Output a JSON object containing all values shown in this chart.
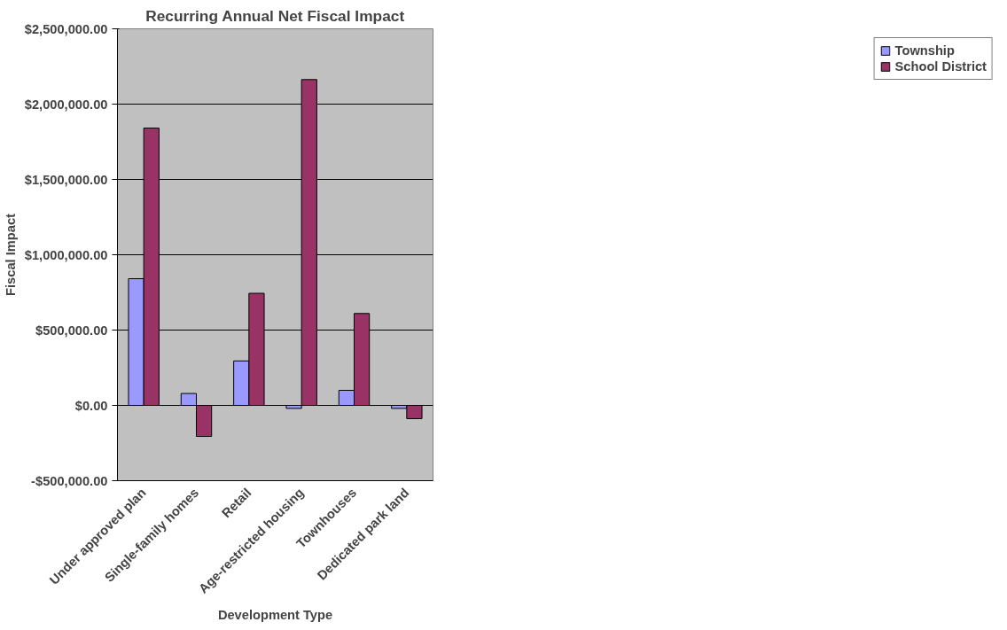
{
  "chart_data": {
    "type": "bar",
    "title": "Recurring Annual Net Fiscal Impact",
    "xlabel": "Development Type",
    "ylabel": "Fiscal Impact",
    "categories": [
      "Under approved plan",
      "Single-family homes",
      "Retail",
      "Age-restricted housing",
      "Townhouses",
      "Dedicated park land"
    ],
    "series": [
      {
        "name": "Township",
        "color": "#9999ff",
        "values": [
          841000,
          79000,
          295000,
          -20000,
          100000,
          -20000
        ]
      },
      {
        "name": "School District",
        "color": "#993366",
        "values": [
          1841000,
          -206000,
          744000,
          2163000,
          610000,
          -88000
        ]
      }
    ],
    "ylim": [
      -500000,
      2500000
    ],
    "yticks": [
      {
        "value": -500000,
        "label": "-$500,000.00"
      },
      {
        "value": 0,
        "label": "$0.00"
      },
      {
        "value": 500000,
        "label": "$500,000.00"
      },
      {
        "value": 1000000,
        "label": "$1,000,000.00"
      },
      {
        "value": 1500000,
        "label": "$1,500,000.00"
      },
      {
        "value": 2000000,
        "label": "$2,000,000.00"
      },
      {
        "value": 2500000,
        "label": "$2,500,000.00"
      }
    ],
    "grid": "y",
    "legend": "right"
  }
}
